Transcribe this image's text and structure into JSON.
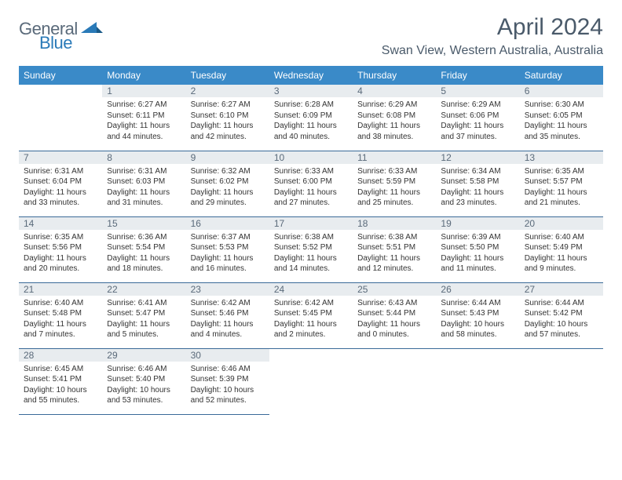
{
  "logo": {
    "text_left": "General",
    "text_right": "Blue"
  },
  "title": "April 2024",
  "location": "Swan View, Western Australia, Australia",
  "header_bg": "#3a8ac8",
  "day_headers": [
    "Sunday",
    "Monday",
    "Tuesday",
    "Wednesday",
    "Thursday",
    "Friday",
    "Saturday"
  ],
  "weeks": [
    [
      {
        "n": "",
        "lines": []
      },
      {
        "n": "1",
        "lines": [
          "Sunrise: 6:27 AM",
          "Sunset: 6:11 PM",
          "Daylight: 11 hours",
          "and 44 minutes."
        ]
      },
      {
        "n": "2",
        "lines": [
          "Sunrise: 6:27 AM",
          "Sunset: 6:10 PM",
          "Daylight: 11 hours",
          "and 42 minutes."
        ]
      },
      {
        "n": "3",
        "lines": [
          "Sunrise: 6:28 AM",
          "Sunset: 6:09 PM",
          "Daylight: 11 hours",
          "and 40 minutes."
        ]
      },
      {
        "n": "4",
        "lines": [
          "Sunrise: 6:29 AM",
          "Sunset: 6:08 PM",
          "Daylight: 11 hours",
          "and 38 minutes."
        ]
      },
      {
        "n": "5",
        "lines": [
          "Sunrise: 6:29 AM",
          "Sunset: 6:06 PM",
          "Daylight: 11 hours",
          "and 37 minutes."
        ]
      },
      {
        "n": "6",
        "lines": [
          "Sunrise: 6:30 AM",
          "Sunset: 6:05 PM",
          "Daylight: 11 hours",
          "and 35 minutes."
        ]
      }
    ],
    [
      {
        "n": "7",
        "lines": [
          "Sunrise: 6:31 AM",
          "Sunset: 6:04 PM",
          "Daylight: 11 hours",
          "and 33 minutes."
        ]
      },
      {
        "n": "8",
        "lines": [
          "Sunrise: 6:31 AM",
          "Sunset: 6:03 PM",
          "Daylight: 11 hours",
          "and 31 minutes."
        ]
      },
      {
        "n": "9",
        "lines": [
          "Sunrise: 6:32 AM",
          "Sunset: 6:02 PM",
          "Daylight: 11 hours",
          "and 29 minutes."
        ]
      },
      {
        "n": "10",
        "lines": [
          "Sunrise: 6:33 AM",
          "Sunset: 6:00 PM",
          "Daylight: 11 hours",
          "and 27 minutes."
        ]
      },
      {
        "n": "11",
        "lines": [
          "Sunrise: 6:33 AM",
          "Sunset: 5:59 PM",
          "Daylight: 11 hours",
          "and 25 minutes."
        ]
      },
      {
        "n": "12",
        "lines": [
          "Sunrise: 6:34 AM",
          "Sunset: 5:58 PM",
          "Daylight: 11 hours",
          "and 23 minutes."
        ]
      },
      {
        "n": "13",
        "lines": [
          "Sunrise: 6:35 AM",
          "Sunset: 5:57 PM",
          "Daylight: 11 hours",
          "and 21 minutes."
        ]
      }
    ],
    [
      {
        "n": "14",
        "lines": [
          "Sunrise: 6:35 AM",
          "Sunset: 5:56 PM",
          "Daylight: 11 hours",
          "and 20 minutes."
        ]
      },
      {
        "n": "15",
        "lines": [
          "Sunrise: 6:36 AM",
          "Sunset: 5:54 PM",
          "Daylight: 11 hours",
          "and 18 minutes."
        ]
      },
      {
        "n": "16",
        "lines": [
          "Sunrise: 6:37 AM",
          "Sunset: 5:53 PM",
          "Daylight: 11 hours",
          "and 16 minutes."
        ]
      },
      {
        "n": "17",
        "lines": [
          "Sunrise: 6:38 AM",
          "Sunset: 5:52 PM",
          "Daylight: 11 hours",
          "and 14 minutes."
        ]
      },
      {
        "n": "18",
        "lines": [
          "Sunrise: 6:38 AM",
          "Sunset: 5:51 PM",
          "Daylight: 11 hours",
          "and 12 minutes."
        ]
      },
      {
        "n": "19",
        "lines": [
          "Sunrise: 6:39 AM",
          "Sunset: 5:50 PM",
          "Daylight: 11 hours",
          "and 11 minutes."
        ]
      },
      {
        "n": "20",
        "lines": [
          "Sunrise: 6:40 AM",
          "Sunset: 5:49 PM",
          "Daylight: 11 hours",
          "and 9 minutes."
        ]
      }
    ],
    [
      {
        "n": "21",
        "lines": [
          "Sunrise: 6:40 AM",
          "Sunset: 5:48 PM",
          "Daylight: 11 hours",
          "and 7 minutes."
        ]
      },
      {
        "n": "22",
        "lines": [
          "Sunrise: 6:41 AM",
          "Sunset: 5:47 PM",
          "Daylight: 11 hours",
          "and 5 minutes."
        ]
      },
      {
        "n": "23",
        "lines": [
          "Sunrise: 6:42 AM",
          "Sunset: 5:46 PM",
          "Daylight: 11 hours",
          "and 4 minutes."
        ]
      },
      {
        "n": "24",
        "lines": [
          "Sunrise: 6:42 AM",
          "Sunset: 5:45 PM",
          "Daylight: 11 hours",
          "and 2 minutes."
        ]
      },
      {
        "n": "25",
        "lines": [
          "Sunrise: 6:43 AM",
          "Sunset: 5:44 PM",
          "Daylight: 11 hours",
          "and 0 minutes."
        ]
      },
      {
        "n": "26",
        "lines": [
          "Sunrise: 6:44 AM",
          "Sunset: 5:43 PM",
          "Daylight: 10 hours",
          "and 58 minutes."
        ]
      },
      {
        "n": "27",
        "lines": [
          "Sunrise: 6:44 AM",
          "Sunset: 5:42 PM",
          "Daylight: 10 hours",
          "and 57 minutes."
        ]
      }
    ],
    [
      {
        "n": "28",
        "lines": [
          "Sunrise: 6:45 AM",
          "Sunset: 5:41 PM",
          "Daylight: 10 hours",
          "and 55 minutes."
        ]
      },
      {
        "n": "29",
        "lines": [
          "Sunrise: 6:46 AM",
          "Sunset: 5:40 PM",
          "Daylight: 10 hours",
          "and 53 minutes."
        ]
      },
      {
        "n": "30",
        "lines": [
          "Sunrise: 6:46 AM",
          "Sunset: 5:39 PM",
          "Daylight: 10 hours",
          "and 52 minutes."
        ]
      },
      {
        "n": "",
        "lines": []
      },
      {
        "n": "",
        "lines": []
      },
      {
        "n": "",
        "lines": []
      },
      {
        "n": "",
        "lines": []
      }
    ]
  ]
}
